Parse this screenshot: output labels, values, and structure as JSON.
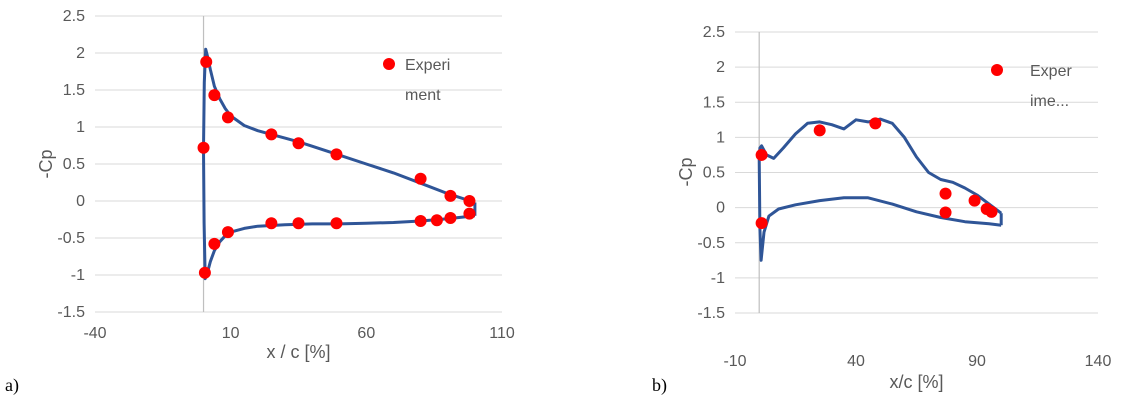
{
  "panel_labels": [
    "a)",
    "b)"
  ],
  "colors": {
    "line": "#2f5597",
    "marker": "#ff0000",
    "grid": "#d9d9d9",
    "axis": "#bfbfbf",
    "text": "#595959"
  },
  "chart_data": [
    {
      "type": "scatter",
      "panel": "a)",
      "xlabel": "x / c [%]",
      "ylabel": "-Cp",
      "xlim": [
        -40,
        110
      ],
      "ylim": [
        -1.5,
        2.5
      ],
      "xticks": [
        -40,
        10,
        60,
        110
      ],
      "yticks": [
        -1.5,
        -1,
        -0.5,
        0,
        0.5,
        1,
        1.5,
        2,
        2.5
      ],
      "grid": "horizontal",
      "legend": {
        "entries": [
          "Experi",
          "ment"
        ],
        "position": "top-right"
      },
      "series": [
        {
          "kind": "line",
          "values_upper": [
            [
              0,
              0.7
            ],
            [
              0.3,
              1.6
            ],
            [
              0.8,
              2.05
            ],
            [
              1.5,
              1.95
            ],
            [
              2.5,
              1.78
            ],
            [
              4,
              1.55
            ],
            [
              6,
              1.38
            ],
            [
              8,
              1.25
            ],
            [
              10,
              1.15
            ],
            [
              15,
              1.02
            ],
            [
              20,
              0.95
            ],
            [
              25,
              0.9
            ],
            [
              30,
              0.85
            ],
            [
              35,
              0.8
            ],
            [
              40,
              0.74
            ],
            [
              50,
              0.62
            ],
            [
              60,
              0.5
            ],
            [
              70,
              0.38
            ],
            [
              80,
              0.24
            ],
            [
              90,
              0.1
            ],
            [
              100,
              -0.02
            ]
          ],
          "values_lower": [
            [
              0,
              0.7
            ],
            [
              0.2,
              -0.3
            ],
            [
              0.6,
              -1.05
            ],
            [
              1.2,
              -1.0
            ],
            [
              2.5,
              -0.82
            ],
            [
              4,
              -0.67
            ],
            [
              6,
              -0.55
            ],
            [
              8,
              -0.47
            ],
            [
              10,
              -0.42
            ],
            [
              15,
              -0.37
            ],
            [
              20,
              -0.34
            ],
            [
              30,
              -0.32
            ],
            [
              40,
              -0.31
            ],
            [
              50,
              -0.31
            ],
            [
              60,
              -0.3
            ],
            [
              70,
              -0.29
            ],
            [
              80,
              -0.27
            ],
            [
              90,
              -0.24
            ],
            [
              100,
              -0.2
            ]
          ],
          "te_closure": [
            [
              100,
              -0.2
            ],
            [
              100,
              -0.02
            ]
          ]
        },
        {
          "kind": "markers",
          "name": "Experiment",
          "points": [
            [
              0,
              0.72
            ],
            [
              1,
              1.88
            ],
            [
              4,
              1.43
            ],
            [
              9,
              1.13
            ],
            [
              25,
              0.9
            ],
            [
              35,
              0.78
            ],
            [
              49,
              0.63
            ],
            [
              80,
              0.3
            ],
            [
              91,
              0.07
            ],
            [
              98,
              0.0
            ],
            [
              0.5,
              -0.97
            ],
            [
              4,
              -0.58
            ],
            [
              9,
              -0.42
            ],
            [
              25,
              -0.3
            ],
            [
              35,
              -0.3
            ],
            [
              49,
              -0.3
            ],
            [
              80,
              -0.27
            ],
            [
              86,
              -0.26
            ],
            [
              91,
              -0.23
            ],
            [
              98,
              -0.17
            ]
          ]
        }
      ]
    },
    {
      "type": "scatter",
      "panel": "b)",
      "xlabel": "x/c [%]",
      "ylabel": "-Cp",
      "xlim": [
        -10,
        140
      ],
      "ylim": [
        -1.5,
        2.5
      ],
      "xticks": [
        -10,
        40,
        90,
        140
      ],
      "yticks": [
        -1.5,
        -1,
        -0.5,
        0,
        0.5,
        1,
        1.5,
        2,
        2.5
      ],
      "grid": "horizontal",
      "legend": {
        "entries": [
          "Exper",
          "ime..."
        ],
        "position": "top-right"
      },
      "series": [
        {
          "kind": "line",
          "values_upper": [
            [
              0,
              0.7
            ],
            [
              0.3,
              0.85
            ],
            [
              1,
              0.88
            ],
            [
              3,
              0.75
            ],
            [
              6,
              0.7
            ],
            [
              10,
              0.85
            ],
            [
              15,
              1.05
            ],
            [
              20,
              1.2
            ],
            [
              25,
              1.22
            ],
            [
              30,
              1.18
            ],
            [
              35,
              1.12
            ],
            [
              40,
              1.25
            ],
            [
              45,
              1.22
            ],
            [
              50,
              1.26
            ],
            [
              55,
              1.2
            ],
            [
              60,
              1.0
            ],
            [
              65,
              0.72
            ],
            [
              70,
              0.5
            ],
            [
              75,
              0.4
            ],
            [
              80,
              0.36
            ],
            [
              85,
              0.28
            ],
            [
              90,
              0.18
            ],
            [
              95,
              0.05
            ],
            [
              100,
              -0.08
            ]
          ],
          "values_lower": [
            [
              0,
              0.7
            ],
            [
              0.3,
              -0.3
            ],
            [
              0.8,
              -0.75
            ],
            [
              2,
              -0.35
            ],
            [
              4,
              -0.12
            ],
            [
              8,
              -0.02
            ],
            [
              15,
              0.04
            ],
            [
              25,
              0.1
            ],
            [
              35,
              0.14
            ],
            [
              45,
              0.14
            ],
            [
              55,
              0.05
            ],
            [
              65,
              -0.06
            ],
            [
              75,
              -0.14
            ],
            [
              85,
              -0.2
            ],
            [
              95,
              -0.23
            ],
            [
              100,
              -0.25
            ]
          ],
          "te_closure": [
            [
              100,
              -0.25
            ],
            [
              100,
              -0.08
            ]
          ]
        },
        {
          "kind": "markers",
          "name": "Experiment",
          "points": [
            [
              1,
              0.75
            ],
            [
              1,
              -0.22
            ],
            [
              25,
              1.1
            ],
            [
              48,
              1.2
            ],
            [
              77,
              0.2
            ],
            [
              77,
              -0.07
            ],
            [
              89,
              0.1
            ],
            [
              94,
              -0.02
            ],
            [
              96,
              -0.06
            ]
          ]
        }
      ]
    }
  ]
}
